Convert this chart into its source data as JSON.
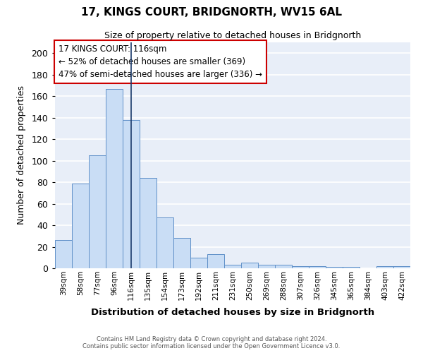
{
  "title": "17, KINGS COURT, BRIDGNORTH, WV15 6AL",
  "subtitle": "Size of property relative to detached houses in Bridgnorth",
  "xlabel": "Distribution of detached houses by size in Bridgnorth",
  "ylabel": "Number of detached properties",
  "categories": [
    "39sqm",
    "58sqm",
    "77sqm",
    "96sqm",
    "116sqm",
    "135sqm",
    "154sqm",
    "173sqm",
    "192sqm",
    "211sqm",
    "231sqm",
    "250sqm",
    "269sqm",
    "288sqm",
    "307sqm",
    "326sqm",
    "345sqm",
    "365sqm",
    "384sqm",
    "403sqm",
    "422sqm"
  ],
  "values": [
    26,
    79,
    105,
    167,
    138,
    84,
    47,
    28,
    10,
    13,
    3,
    5,
    3,
    3,
    2,
    2,
    1,
    1,
    0,
    2,
    2
  ],
  "bar_color": "#c9ddf5",
  "bar_edge_color": "#6090c8",
  "marker_index": 4,
  "marker_color": "#1a3a6b",
  "property_label": "17 KINGS COURT: 116sqm",
  "annotation_line1": "← 52% of detached houses are smaller (369)",
  "annotation_line2": "47% of semi-detached houses are larger (336) →",
  "box_edge_color": "#cc0000",
  "ylim": [
    0,
    210
  ],
  "yticks": [
    0,
    20,
    40,
    60,
    80,
    100,
    120,
    140,
    160,
    180,
    200
  ],
  "background_color": "#e8eef8",
  "grid_color": "#ffffff",
  "footer_line1": "Contains HM Land Registry data © Crown copyright and database right 2024.",
  "footer_line2": "Contains public sector information licensed under the Open Government Licence v3.0."
}
